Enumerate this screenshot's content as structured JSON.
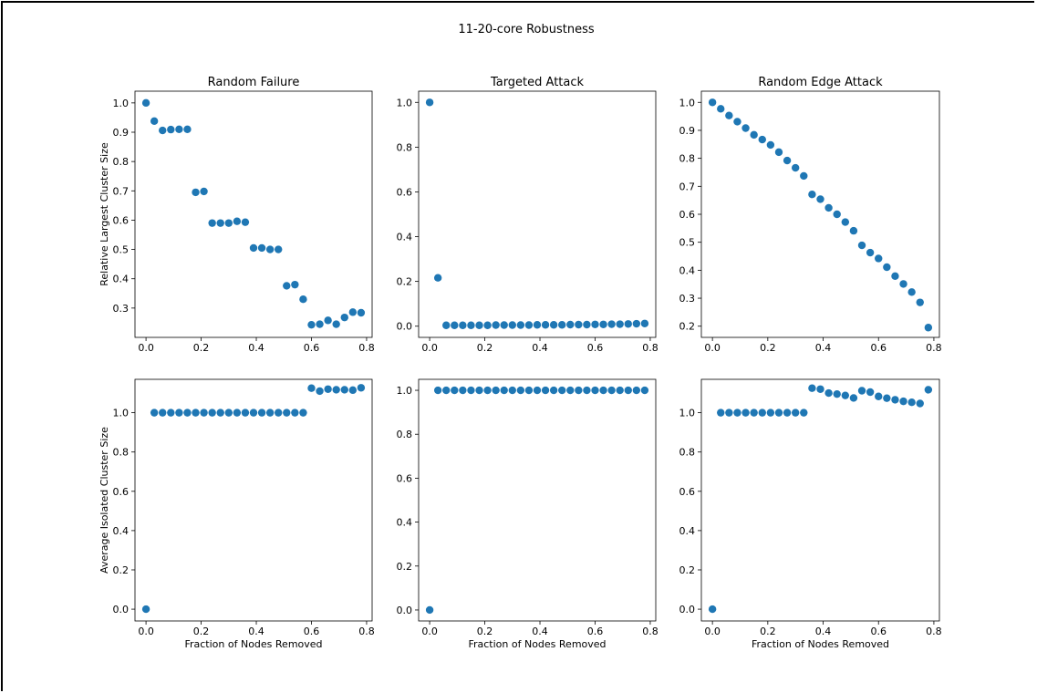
{
  "figure": {
    "title": "11-20-core Robustness"
  },
  "chart_data": [
    {
      "type": "scatter",
      "title": "Random Failure",
      "xlabel": "",
      "ylabel": "Relative Largest Cluster Size",
      "xlim": [
        -0.04,
        0.82
      ],
      "ylim": [
        0.2,
        1.04
      ],
      "xticks": [
        "0.0",
        "0.2",
        "0.4",
        "0.6",
        "0.8"
      ],
      "yticks": [
        "0.3",
        "0.4",
        "0.5",
        "0.6",
        "0.7",
        "0.8",
        "0.9",
        "1.0"
      ],
      "color": "#1f77b4",
      "x": [
        0.0,
        0.03,
        0.06,
        0.09,
        0.12,
        0.15,
        0.18,
        0.21,
        0.24,
        0.27,
        0.3,
        0.33,
        0.36,
        0.39,
        0.42,
        0.45,
        0.48,
        0.51,
        0.54,
        0.57,
        0.6,
        0.63,
        0.66,
        0.69,
        0.72,
        0.75,
        0.78
      ],
      "y": [
        1.0,
        0.938,
        0.906,
        0.909,
        0.91,
        0.91,
        0.695,
        0.698,
        0.59,
        0.59,
        0.59,
        0.596,
        0.593,
        0.505,
        0.505,
        0.5,
        0.5,
        0.376,
        0.38,
        0.33,
        0.243,
        0.245,
        0.258,
        0.245,
        0.268,
        0.286,
        0.284
      ]
    },
    {
      "type": "scatter",
      "title": "Targeted Attack",
      "xlabel": "",
      "ylabel": "",
      "xlim": [
        -0.04,
        0.82
      ],
      "ylim": [
        -0.05,
        1.05
      ],
      "xticks": [
        "0.0",
        "0.2",
        "0.4",
        "0.6",
        "0.8"
      ],
      "yticks": [
        "0.0",
        "0.2",
        "0.4",
        "0.6",
        "0.8",
        "1.0"
      ],
      "color": "#1f77b4",
      "x": [
        0.0,
        0.03,
        0.06,
        0.09,
        0.12,
        0.15,
        0.18,
        0.21,
        0.24,
        0.27,
        0.3,
        0.33,
        0.36,
        0.39,
        0.42,
        0.45,
        0.48,
        0.51,
        0.54,
        0.57,
        0.6,
        0.63,
        0.66,
        0.69,
        0.72,
        0.75,
        0.78
      ],
      "y": [
        1.0,
        0.216,
        0.004,
        0.004,
        0.004,
        0.004,
        0.004,
        0.004,
        0.005,
        0.005,
        0.005,
        0.005,
        0.005,
        0.006,
        0.006,
        0.006,
        0.006,
        0.007,
        0.007,
        0.007,
        0.008,
        0.008,
        0.009,
        0.009,
        0.01,
        0.011,
        0.012
      ]
    },
    {
      "type": "scatter",
      "title": "Random Edge Attack",
      "xlabel": "",
      "ylabel": "",
      "xlim": [
        -0.04,
        0.82
      ],
      "ylim": [
        0.16,
        1.04
      ],
      "xticks": [
        "0.0",
        "0.2",
        "0.4",
        "0.6",
        "0.8"
      ],
      "yticks": [
        "0.2",
        "0.3",
        "0.4",
        "0.5",
        "0.6",
        "0.7",
        "0.8",
        "0.9",
        "1.0"
      ],
      "color": "#1f77b4",
      "x": [
        0.0,
        0.03,
        0.06,
        0.09,
        0.12,
        0.15,
        0.18,
        0.21,
        0.24,
        0.27,
        0.3,
        0.33,
        0.36,
        0.39,
        0.42,
        0.45,
        0.48,
        0.51,
        0.54,
        0.57,
        0.6,
        0.63,
        0.66,
        0.69,
        0.72,
        0.75,
        0.78
      ],
      "y": [
        1.0,
        0.977,
        0.953,
        0.931,
        0.908,
        0.884,
        0.867,
        0.848,
        0.822,
        0.792,
        0.766,
        0.737,
        0.671,
        0.654,
        0.623,
        0.6,
        0.572,
        0.541,
        0.489,
        0.463,
        0.442,
        0.411,
        0.379,
        0.351,
        0.322,
        0.285,
        0.195
      ]
    },
    {
      "type": "scatter",
      "title": "",
      "xlabel": "Fraction of Nodes Removed",
      "ylabel": "Average Isolated Cluster Size",
      "xlim": [
        -0.04,
        0.82
      ],
      "ylim": [
        -0.06,
        1.17
      ],
      "xticks": [
        "0.0",
        "0.2",
        "0.4",
        "0.6",
        "0.8"
      ],
      "yticks": [
        "0.0",
        "0.2",
        "0.4",
        "0.6",
        "0.8",
        "1.0"
      ],
      "color": "#1f77b4",
      "x": [
        0.0,
        0.03,
        0.06,
        0.09,
        0.12,
        0.15,
        0.18,
        0.21,
        0.24,
        0.27,
        0.3,
        0.33,
        0.36,
        0.39,
        0.42,
        0.45,
        0.48,
        0.51,
        0.54,
        0.57,
        0.6,
        0.63,
        0.66,
        0.69,
        0.72,
        0.75,
        0.78
      ],
      "y": [
        0.0,
        1.0,
        1.0,
        1.0,
        1.0,
        1.0,
        1.0,
        1.0,
        1.0,
        1.0,
        1.0,
        1.0,
        1.0,
        1.0,
        1.0,
        1.0,
        1.0,
        1.0,
        1.0,
        1.0,
        1.125,
        1.11,
        1.12,
        1.117,
        1.117,
        1.115,
        1.127
      ]
    },
    {
      "type": "scatter",
      "title": "",
      "xlabel": "Fraction of Nodes Removed",
      "ylabel": "",
      "xlim": [
        -0.04,
        0.82
      ],
      "ylim": [
        -0.05,
        1.05
      ],
      "xticks": [
        "0.0",
        "0.2",
        "0.4",
        "0.6",
        "0.8"
      ],
      "yticks": [
        "0.0",
        "0.2",
        "0.4",
        "0.6",
        "0.8",
        "1.0"
      ],
      "color": "#1f77b4",
      "x": [
        0.0,
        0.03,
        0.06,
        0.09,
        0.12,
        0.15,
        0.18,
        0.21,
        0.24,
        0.27,
        0.3,
        0.33,
        0.36,
        0.39,
        0.42,
        0.45,
        0.48,
        0.51,
        0.54,
        0.57,
        0.6,
        0.63,
        0.66,
        0.69,
        0.72,
        0.75,
        0.78
      ],
      "y": [
        0.0,
        1.0,
        1.0,
        1.0,
        1.0,
        1.0,
        1.0,
        1.0,
        1.0,
        1.0,
        1.0,
        1.0,
        1.0,
        1.0,
        1.0,
        1.0,
        1.0,
        1.0,
        1.0,
        1.0,
        1.0,
        1.0,
        1.0,
        1.0,
        1.0,
        1.0,
        1.0
      ]
    },
    {
      "type": "scatter",
      "title": "",
      "xlabel": "Fraction of Nodes Removed",
      "ylabel": "",
      "xlim": [
        -0.04,
        0.82
      ],
      "ylim": [
        -0.06,
        1.17
      ],
      "xticks": [
        "0.0",
        "0.2",
        "0.4",
        "0.6",
        "0.8"
      ],
      "yticks": [
        "0.0",
        "0.2",
        "0.4",
        "0.6",
        "0.8",
        "1.0"
      ],
      "color": "#1f77b4",
      "x": [
        0.0,
        0.03,
        0.06,
        0.09,
        0.12,
        0.15,
        0.18,
        0.21,
        0.24,
        0.27,
        0.3,
        0.33,
        0.36,
        0.39,
        0.42,
        0.45,
        0.48,
        0.51,
        0.54,
        0.57,
        0.6,
        0.63,
        0.66,
        0.69,
        0.72,
        0.75,
        0.78
      ],
      "y": [
        0.0,
        1.0,
        1.0,
        1.0,
        1.0,
        1.0,
        1.0,
        1.0,
        1.0,
        1.0,
        1.0,
        1.0,
        1.125,
        1.12,
        1.1,
        1.095,
        1.088,
        1.075,
        1.112,
        1.105,
        1.083,
        1.074,
        1.066,
        1.058,
        1.053,
        1.047,
        1.117
      ]
    }
  ]
}
